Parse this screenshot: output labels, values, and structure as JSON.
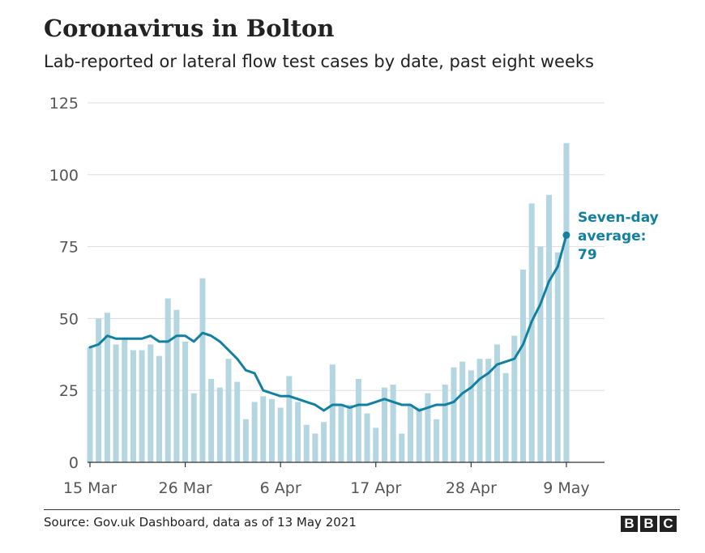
{
  "header": {
    "title": "Coronavirus in Bolton",
    "subtitle": "Lab-reported or lateral flow test cases by date, past eight weeks"
  },
  "footer": {
    "source": "Source: Gov.uk Dashboard, data as of 13 May 2021",
    "logo_letters": [
      "B",
      "B",
      "C"
    ]
  },
  "colors": {
    "bar": "#b3d6e1",
    "line": "#1380a1",
    "grid": "#dddddd",
    "axis": "#333333",
    "tick_text": "#555555"
  },
  "chart_data": {
    "type": "bar",
    "title": "Coronavirus in Bolton",
    "subtitle": "Lab-reported or lateral flow test cases by date, past eight weeks",
    "xlabel": "",
    "ylabel": "",
    "ylim": [
      0,
      125
    ],
    "yticks": [
      0,
      25,
      50,
      75,
      100,
      125
    ],
    "grid": true,
    "start_date": "15 Mar",
    "x_tick_labels": [
      "15 Mar",
      "26 Mar",
      "6 Apr",
      "17 Apr",
      "28 Apr",
      "9 May"
    ],
    "x_tick_index": [
      0,
      11,
      22,
      33,
      44,
      55
    ],
    "values": [
      40,
      50,
      52,
      41,
      43,
      39,
      39,
      41,
      37,
      57,
      53,
      42,
      24,
      64,
      29,
      26,
      36,
      28,
      15,
      21,
      23,
      22,
      19,
      30,
      21,
      13,
      10,
      14,
      34,
      20,
      20,
      29,
      17,
      12,
      26,
      27,
      10,
      20,
      19,
      24,
      15,
      27,
      33,
      35,
      32,
      36,
      36,
      41,
      31,
      44,
      67,
      90,
      75,
      93,
      73,
      111
    ],
    "series": [
      {
        "name": "Seven-day average",
        "type": "line",
        "values": [
          40,
          41,
          44,
          43,
          43,
          43,
          43,
          44,
          42,
          42,
          44,
          44,
          42,
          45,
          44,
          42,
          39,
          36,
          32,
          31,
          25,
          24,
          23,
          23,
          22,
          21,
          20,
          18,
          20,
          20,
          19,
          20,
          20,
          21,
          22,
          21,
          20,
          20,
          18,
          19,
          20,
          20,
          21,
          24,
          26,
          29,
          31,
          34,
          35,
          36,
          41,
          49,
          55,
          63,
          68,
          79
        ]
      }
    ],
    "annotation": {
      "lines": [
        "Seven-day",
        "average:",
        "79"
      ]
    }
  }
}
